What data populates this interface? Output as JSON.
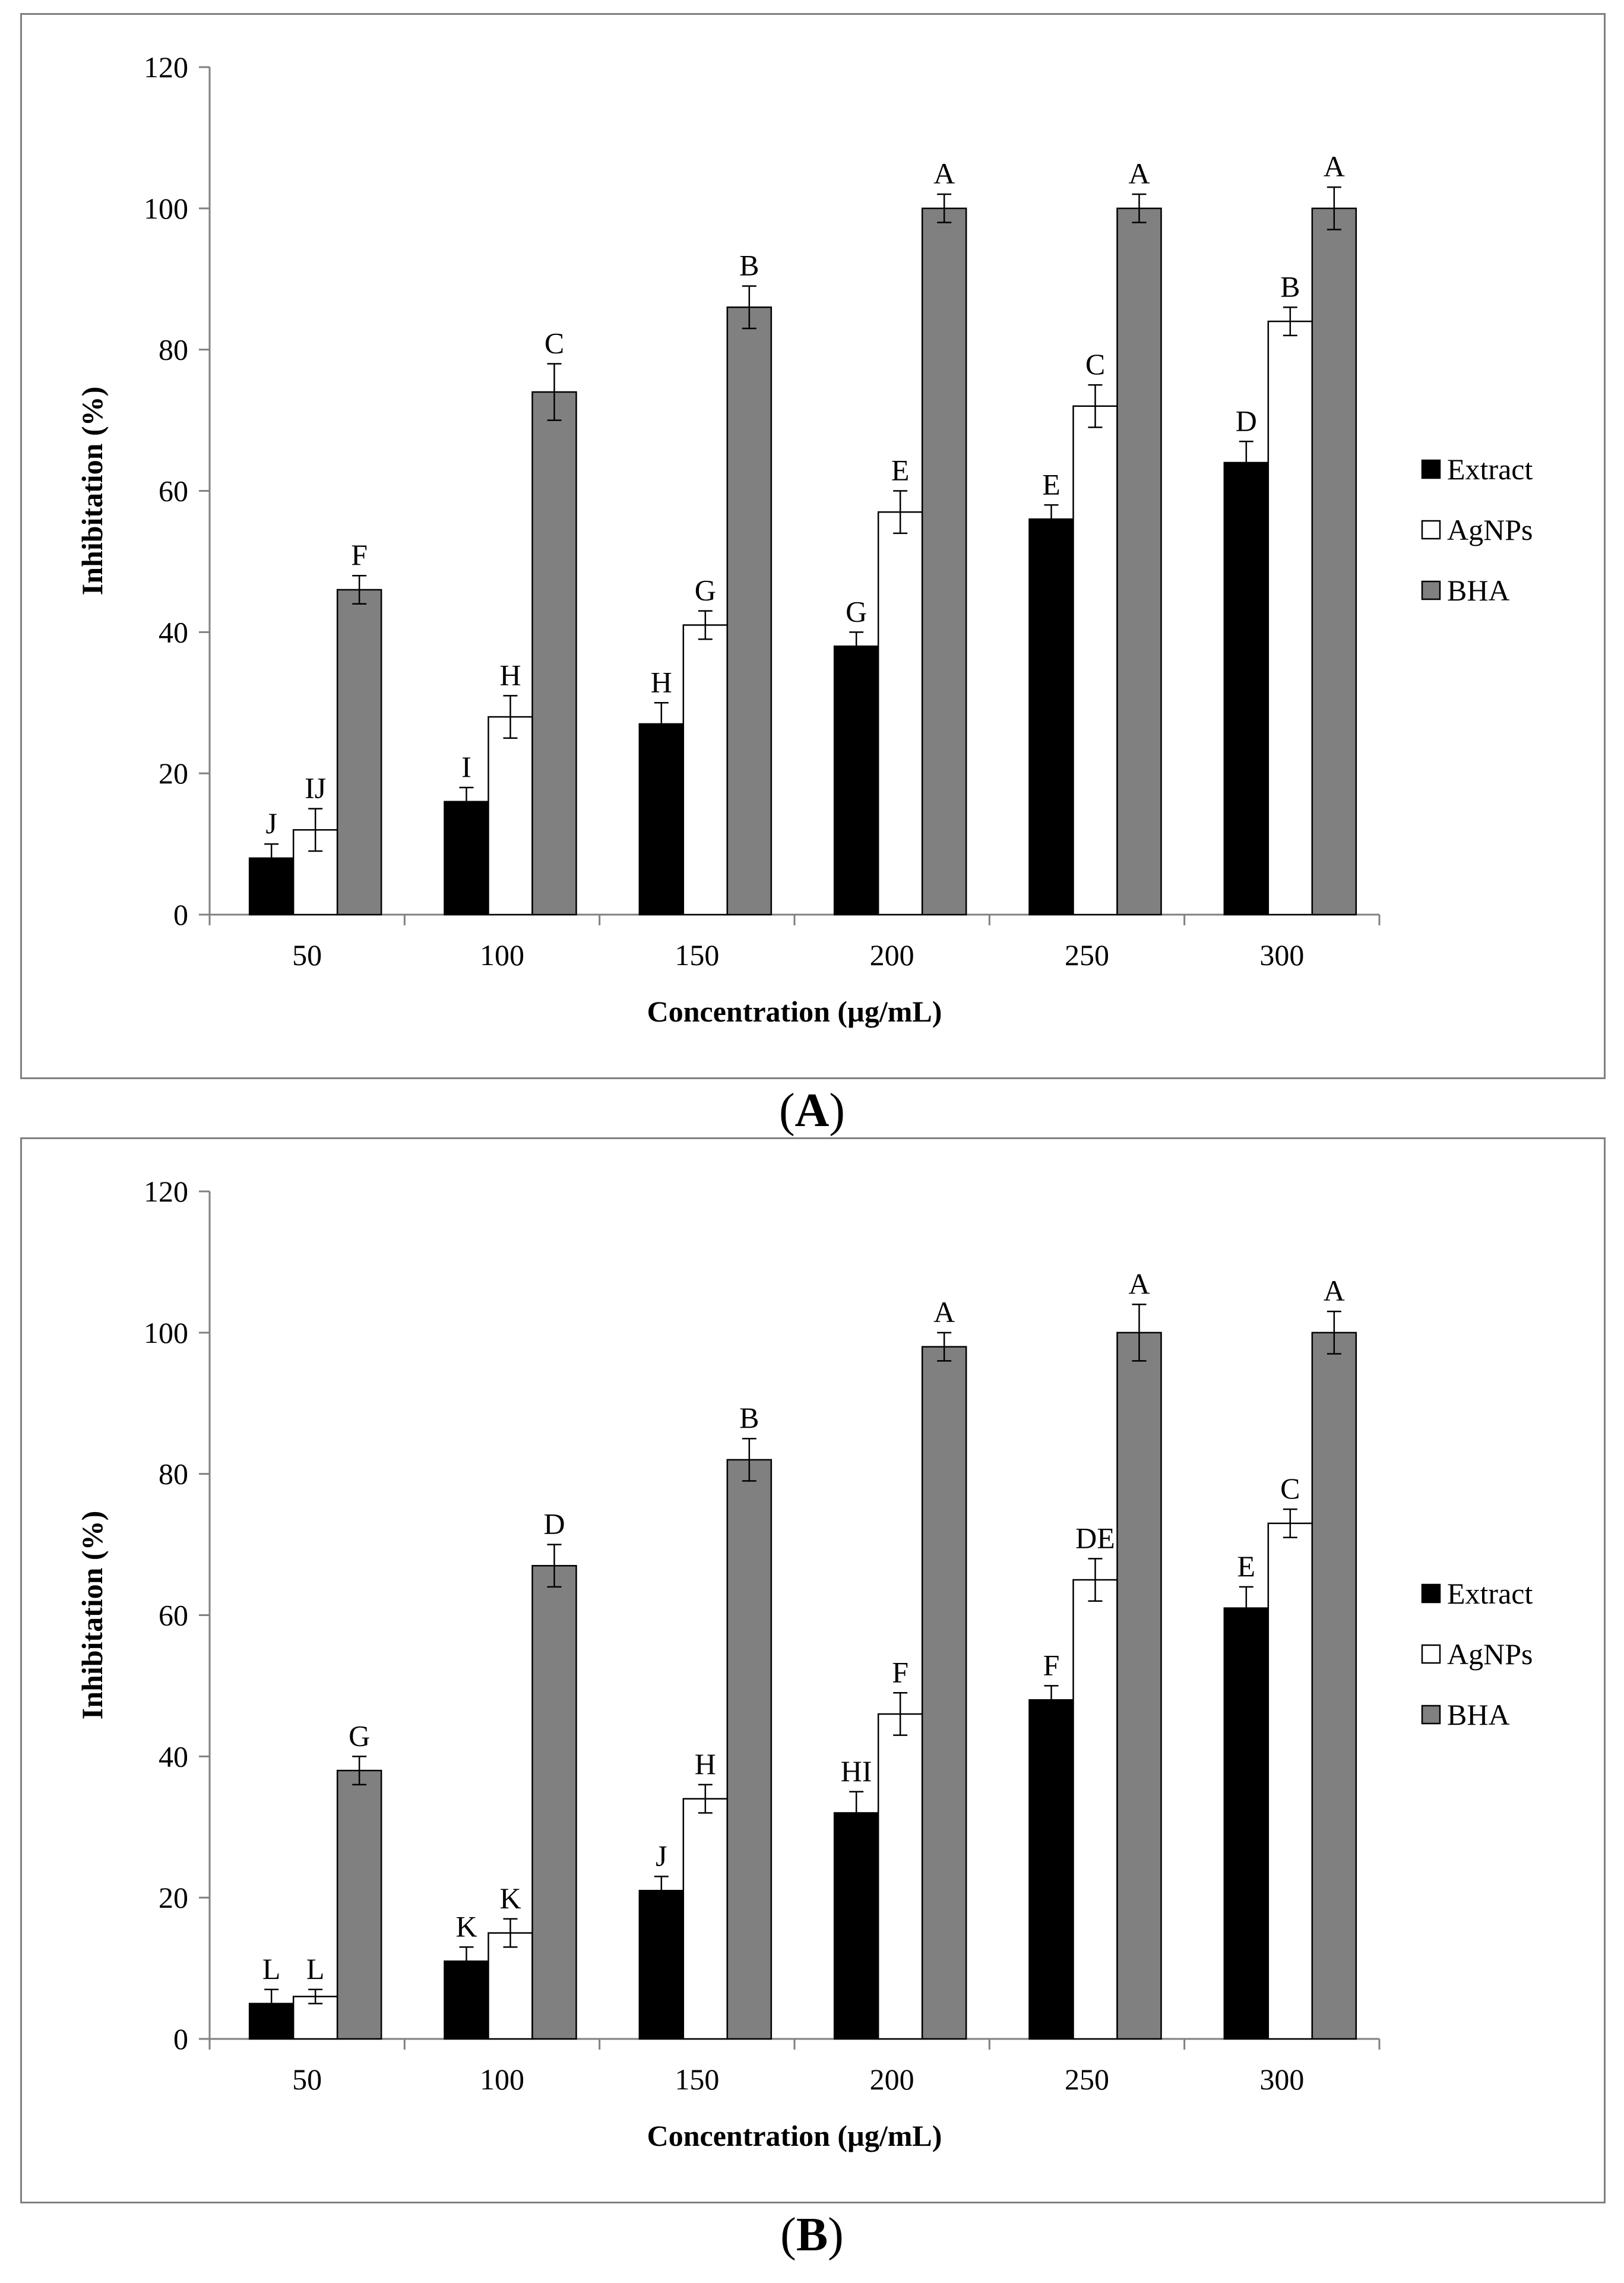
{
  "chart_data": [
    {
      "type": "bar",
      "panel_label": "A",
      "xlabel": "Concentration (µg/mL)",
      "ylabel": "Inhibitation (%)",
      "ylim": [
        0,
        120
      ],
      "yticks": [
        0,
        20,
        40,
        60,
        80,
        100,
        120
      ],
      "categories": [
        "50",
        "100",
        "150",
        "200",
        "250",
        "300"
      ],
      "legend_position": "right",
      "grid": false,
      "series": [
        {
          "name": "Extract",
          "color": "#000000",
          "values": [
            8,
            16,
            27,
            38,
            56,
            64
          ],
          "errors": [
            2,
            2,
            3,
            2,
            2,
            3
          ],
          "letters": [
            "J",
            "I",
            "H",
            "G",
            "E",
            "D"
          ]
        },
        {
          "name": "AgNPs",
          "color": "#ffffff",
          "values": [
            12,
            28,
            41,
            57,
            72,
            84
          ],
          "errors": [
            3,
            3,
            2,
            3,
            3,
            2
          ],
          "letters": [
            "IJ",
            "H",
            "G",
            "E",
            "C",
            "B"
          ]
        },
        {
          "name": "BHA",
          "color": "#808080",
          "values": [
            46,
            74,
            86,
            100,
            100,
            100
          ],
          "errors": [
            2,
            4,
            3,
            2,
            2,
            3
          ],
          "letters": [
            "F",
            "C",
            "B",
            "A",
            "A",
            "A"
          ]
        }
      ]
    },
    {
      "type": "bar",
      "panel_label": "B",
      "xlabel": "Concentration (µg/mL)",
      "ylabel": "Inhibitation (%)",
      "ylim": [
        0,
        120
      ],
      "yticks": [
        0,
        20,
        40,
        60,
        80,
        100,
        120
      ],
      "categories": [
        "50",
        "100",
        "150",
        "200",
        "250",
        "300"
      ],
      "legend_position": "right",
      "grid": false,
      "series": [
        {
          "name": "Extract",
          "color": "#000000",
          "values": [
            5,
            11,
            21,
            32,
            48,
            61
          ],
          "errors": [
            2,
            2,
            2,
            3,
            2,
            3
          ],
          "letters": [
            "L",
            "K",
            "J",
            "HI",
            "F",
            "E"
          ]
        },
        {
          "name": "AgNPs",
          "color": "#ffffff",
          "values": [
            6,
            15,
            34,
            46,
            65,
            73
          ],
          "errors": [
            1,
            2,
            2,
            3,
            3,
            2
          ],
          "letters": [
            "L",
            "K",
            "H",
            "F",
            "DE",
            "C"
          ]
        },
        {
          "name": "BHA",
          "color": "#808080",
          "values": [
            38,
            67,
            82,
            98,
            100,
            100
          ],
          "errors": [
            2,
            3,
            3,
            2,
            4,
            3
          ],
          "letters": [
            "G",
            "D",
            "B",
            "A",
            "A",
            "A"
          ]
        }
      ]
    }
  ]
}
